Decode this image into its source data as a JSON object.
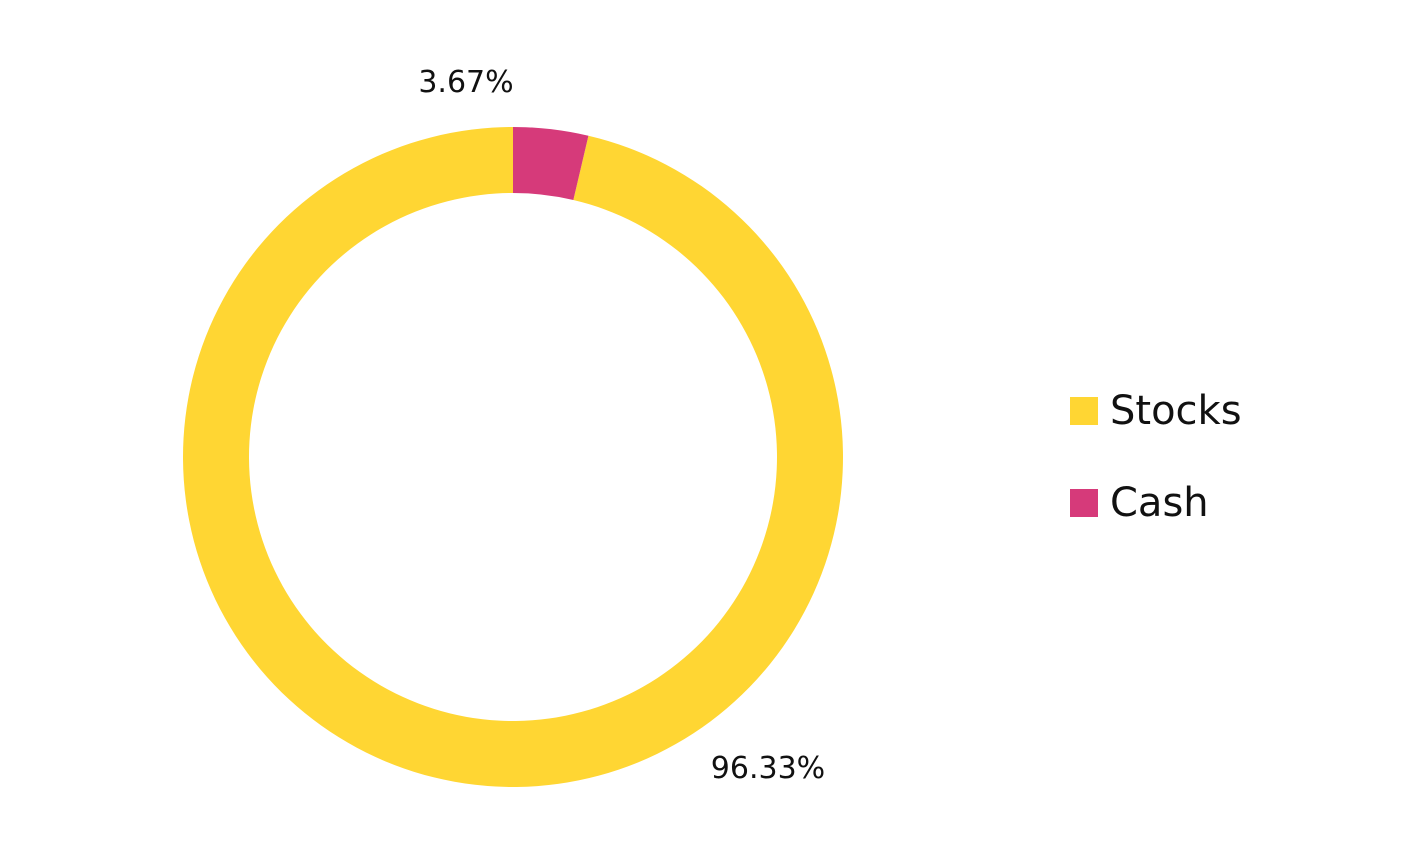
{
  "chart_data": {
    "type": "pie",
    "variant": "donut",
    "series": [
      {
        "name": "Stocks",
        "value": 96.33,
        "label": "96.33%",
        "color": "#FFD633"
      },
      {
        "name": "Cash",
        "value": 3.67,
        "label": "3.67%",
        "color": "#D63A7A"
      }
    ],
    "legend_position": "right"
  },
  "legend": {
    "items": [
      {
        "label": "Stocks",
        "color": "#FFD633"
      },
      {
        "label": "Cash",
        "color": "#D63A7A"
      }
    ]
  }
}
